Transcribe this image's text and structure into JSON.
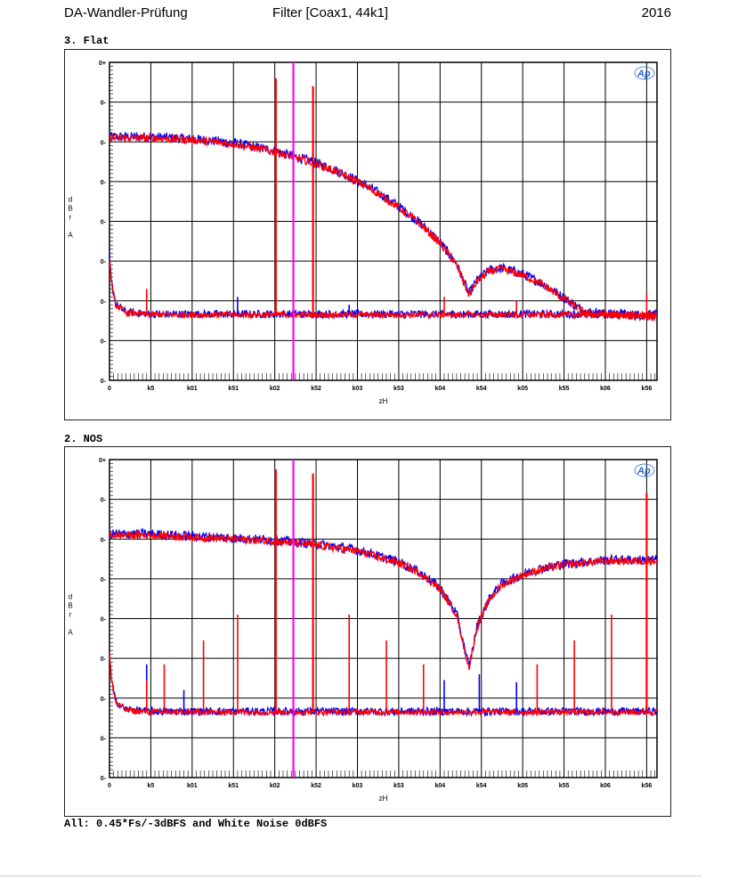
{
  "header": {
    "left": "DA-Wandler-Prüfung",
    "center": "Filter [Coax1, 44k1]",
    "right": "2016"
  },
  "footer": "All: 0.45*Fs/-3dBFS and White Noise 0dBFS",
  "colors": {
    "marker": "#ff00ff",
    "ch_left": "#0000ff",
    "ch_right": "#ff0000",
    "logo": "#2a6cd6"
  },
  "chart_data": [
    {
      "type": "line",
      "title": "3. Flat",
      "logo": "Ap",
      "ylabel_chars": [
        "d",
        "B",
        "r",
        "A"
      ],
      "xlabel": "zH",
      "xlim": [
        0,
        26500
      ],
      "ylim": [
        -160,
        0
      ],
      "grid": true,
      "y_tick_labels": [
        "0+",
        "0-",
        "0-",
        "0-",
        "0-",
        "0-",
        "0-",
        "0-",
        "0-"
      ],
      "x_ticks": [
        0,
        2000,
        4000,
        6000,
        8000,
        10000,
        12000,
        14000,
        16000,
        18000,
        20000,
        22000,
        24000,
        26000
      ],
      "x_tick_labels": [
        "0",
        "k5",
        "k01",
        "k51",
        "k02",
        "k52",
        "k03",
        "k53",
        "k04",
        "k54",
        "k05",
        "k55",
        "k06",
        "k56"
      ],
      "marker_x": 8900,
      "response": {
        "x": [
          0,
          2000,
          4000,
          6000,
          8000,
          9000,
          10000,
          11000,
          12000,
          13000,
          14000,
          15000,
          16000,
          16800,
          17400,
          17800,
          18400,
          19000,
          20000,
          21000,
          22000,
          23000,
          24000,
          26500
        ],
        "y": [
          -38,
          -38,
          -39,
          -41,
          -45,
          -48,
          -51,
          -55,
          -60,
          -66,
          -73,
          -81,
          -91,
          -102,
          -117,
          -110,
          -105,
          -104,
          -107,
          -112,
          -119,
          -126,
          -127,
          -128
        ]
      },
      "noise_floor": {
        "x": [
          0,
          80,
          300,
          800,
          2000,
          10000,
          20000,
          26500
        ],
        "y": [
          -97,
          -110,
          -122,
          -126,
          -127,
          -127,
          -127,
          -127
        ]
      },
      "spurs": [
        {
          "x": 1800,
          "y": -114,
          "channel": "red"
        },
        {
          "x": 6200,
          "y": -118,
          "channel": "blue"
        },
        {
          "x": 8050,
          "y": -8,
          "channel": "red"
        },
        {
          "x": 9850,
          "y": -12,
          "channel": "red"
        },
        {
          "x": 11600,
          "y": -122,
          "channel": "blue"
        },
        {
          "x": 16200,
          "y": -118,
          "channel": "red"
        },
        {
          "x": 19700,
          "y": -120,
          "channel": "red"
        },
        {
          "x": 26000,
          "y": -116,
          "channel": "red"
        }
      ]
    },
    {
      "type": "line",
      "title": "2. NOS",
      "logo": "Ap",
      "ylabel_chars": [
        "d",
        "B",
        "r",
        "A"
      ],
      "xlabel": "zH",
      "xlim": [
        0,
        26500
      ],
      "ylim": [
        -160,
        0
      ],
      "grid": true,
      "y_tick_labels": [
        "0+",
        "0-",
        "0-",
        "0-",
        "0-",
        "0-",
        "0-",
        "0-",
        "0-"
      ],
      "x_ticks": [
        0,
        2000,
        4000,
        6000,
        8000,
        10000,
        12000,
        14000,
        16000,
        18000,
        20000,
        22000,
        24000,
        26000
      ],
      "x_tick_labels": [
        "0",
        "k5",
        "k01",
        "k51",
        "k02",
        "k52",
        "k03",
        "k53",
        "k04",
        "k54",
        "k05",
        "k55",
        "k06",
        "k56"
      ],
      "marker_x": 8900,
      "response": {
        "x": [
          0,
          2000,
          4000,
          6000,
          8000,
          10000,
          12000,
          14000,
          15000,
          16000,
          16800,
          17400,
          17800,
          18400,
          19000,
          20000,
          21000,
          22000,
          23000,
          24000,
          25000,
          26500
        ],
        "y": [
          -38,
          -38,
          -39,
          -40,
          -41,
          -43,
          -46,
          -52,
          -57,
          -65,
          -78,
          -105,
          -84,
          -70,
          -63,
          -58,
          -55,
          -53,
          -52,
          -51,
          -51,
          -51
        ]
      },
      "noise_floor": {
        "x": [
          0,
          80,
          300,
          800,
          2000,
          10000,
          20000,
          26500
        ],
        "y": [
          -97,
          -110,
          -122,
          -126,
          -127,
          -127,
          -127,
          -127
        ]
      },
      "spurs": [
        {
          "x": 1800,
          "y": -103,
          "channel": "blue"
        },
        {
          "x": 1800,
          "y": -111,
          "channel": "red"
        },
        {
          "x": 2650,
          "y": -103,
          "channel": "red"
        },
        {
          "x": 3600,
          "y": -116,
          "channel": "blue"
        },
        {
          "x": 4550,
          "y": -91,
          "channel": "red"
        },
        {
          "x": 6200,
          "y": -78,
          "channel": "red"
        },
        {
          "x": 8050,
          "y": -5,
          "channel": "red"
        },
        {
          "x": 9850,
          "y": -7,
          "channel": "red"
        },
        {
          "x": 11600,
          "y": -78,
          "channel": "red"
        },
        {
          "x": 13400,
          "y": -91,
          "channel": "red"
        },
        {
          "x": 15200,
          "y": -103,
          "channel": "red"
        },
        {
          "x": 16200,
          "y": -111,
          "channel": "blue"
        },
        {
          "x": 17900,
          "y": -108,
          "channel": "blue"
        },
        {
          "x": 19700,
          "y": -112,
          "channel": "blue"
        },
        {
          "x": 20700,
          "y": -103,
          "channel": "red"
        },
        {
          "x": 22500,
          "y": -91,
          "channel": "red"
        },
        {
          "x": 24300,
          "y": -78,
          "channel": "red"
        },
        {
          "x": 26000,
          "y": -17,
          "channel": "red"
        }
      ]
    }
  ]
}
